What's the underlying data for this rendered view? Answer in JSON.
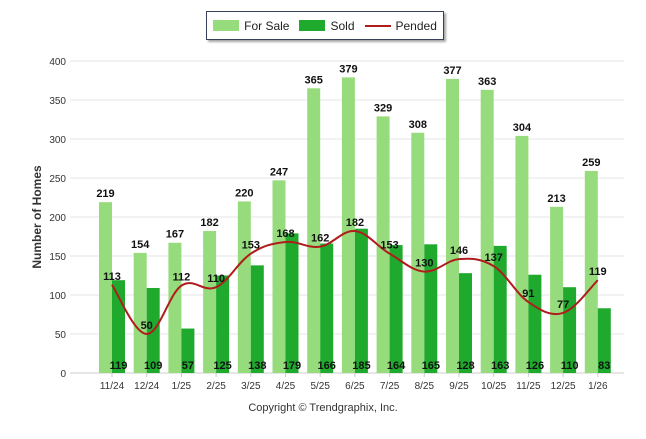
{
  "legend": {
    "items": [
      {
        "label": "For Sale",
        "color": "#97dc7c",
        "kind": "bar"
      },
      {
        "label": "Sold",
        "color": "#1faa2e",
        "kind": "bar"
      },
      {
        "label": "Pended",
        "color": "#b01c1c",
        "kind": "line"
      }
    ]
  },
  "footer": {
    "copyright": "Copyright © Trendgraphix, Inc."
  },
  "chart_data": {
    "type": "bar",
    "ylabel": "Number of Homes",
    "xlabel": "",
    "ylim": [
      0,
      400
    ],
    "yticks": [
      0,
      50,
      100,
      150,
      200,
      250,
      300,
      350,
      400
    ],
    "grid": true,
    "legend_position": "top-center",
    "categories": [
      "11/24",
      "12/24",
      "1/25",
      "2/25",
      "3/25",
      "4/25",
      "5/25",
      "6/25",
      "7/25",
      "8/25",
      "9/25",
      "10/25",
      "11/25",
      "12/25",
      "1/26"
    ],
    "series": [
      {
        "name": "For Sale",
        "kind": "bar",
        "color": "#97dc7c",
        "values": [
          219,
          154,
          167,
          182,
          220,
          247,
          365,
          379,
          329,
          308,
          377,
          363,
          304,
          213,
          259
        ]
      },
      {
        "name": "Sold",
        "kind": "bar",
        "color": "#1faa2e",
        "values": [
          119,
          109,
          57,
          125,
          138,
          179,
          166,
          185,
          164,
          165,
          128,
          163,
          126,
          110,
          83
        ]
      },
      {
        "name": "Pended",
        "kind": "line",
        "color": "#b01c1c",
        "values": [
          113,
          50,
          112,
          110,
          153,
          168,
          162,
          182,
          153,
          130,
          146,
          137,
          91,
          77,
          119
        ]
      }
    ]
  }
}
